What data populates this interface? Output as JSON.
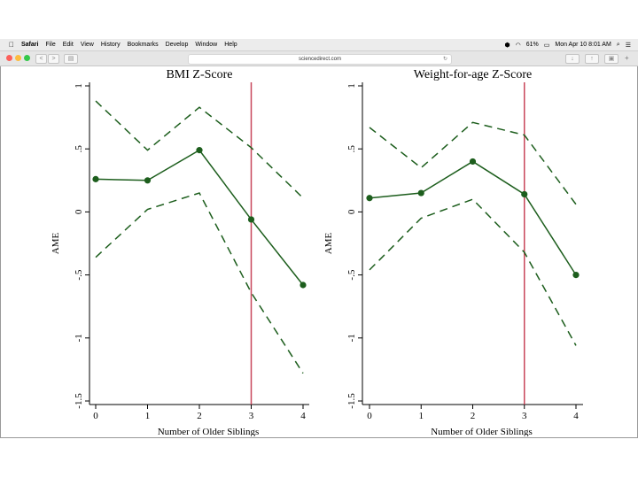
{
  "menubar": {
    "app_name": "Safari",
    "items": [
      "File",
      "Edit",
      "View",
      "History",
      "Bookmarks",
      "Develop",
      "Window",
      "Help"
    ],
    "battery": "61%",
    "datetime": "Mon Apr 10  8:01 AM",
    "apple_glyph": ""
  },
  "toolbar": {
    "url": "sciencedirect.com",
    "back_glyph": "<",
    "forward_glyph": ">",
    "reload_glyph": "↻",
    "traffic_colors": [
      "#fc605b",
      "#fdbc40",
      "#34c84a"
    ]
  },
  "colors": {
    "series": "#1d5e1d",
    "ref_line": "#c8465a"
  },
  "chart_data": [
    {
      "type": "line",
      "title": "BMI Z-Score",
      "xlabel": "Number of Older Siblings",
      "ylabel": "AME",
      "x": [
        0,
        1,
        2,
        3,
        4
      ],
      "xlim": [
        0,
        4
      ],
      "ylim": [
        -1.5,
        1
      ],
      "yticks": [
        1,
        0.5,
        0,
        -0.5,
        -1,
        -1.5
      ],
      "ytick_labels": [
        "1",
        ".5",
        "0",
        "-.5",
        "-1",
        "-1.5"
      ],
      "xtick_labels": [
        "0",
        "1",
        "2",
        "3",
        "4"
      ],
      "vline": 3,
      "series": [
        {
          "name": "AME",
          "values": [
            0.26,
            0.25,
            0.49,
            -0.06,
            -0.58
          ]
        },
        {
          "name": "Upper CI",
          "values": [
            0.88,
            0.49,
            0.83,
            0.51,
            0.11
          ]
        },
        {
          "name": "Lower CI",
          "values": [
            -0.36,
            0.02,
            0.15,
            -0.64,
            -1.28
          ]
        }
      ]
    },
    {
      "type": "line",
      "title": "Weight-for-age Z-Score",
      "xlabel": "Number of Older Siblings",
      "ylabel": "AME",
      "x": [
        0,
        1,
        2,
        3,
        4
      ],
      "xlim": [
        0,
        4
      ],
      "ylim": [
        -1.5,
        1
      ],
      "yticks": [
        1,
        0.5,
        0,
        -0.5,
        -1,
        -1.5
      ],
      "ytick_labels": [
        "1",
        ".5",
        "0",
        "-.5",
        "-1",
        "-1.5"
      ],
      "xtick_labels": [
        "0",
        "1",
        "2",
        "3",
        "4"
      ],
      "vline": 3,
      "series": [
        {
          "name": "AME",
          "values": [
            0.11,
            0.15,
            0.4,
            0.14,
            -0.5
          ]
        },
        {
          "name": "Upper CI",
          "values": [
            0.67,
            0.35,
            0.71,
            0.61,
            0.06
          ]
        },
        {
          "name": "Lower CI",
          "values": [
            -0.46,
            -0.05,
            0.1,
            -0.32,
            -1.06
          ]
        }
      ]
    }
  ]
}
